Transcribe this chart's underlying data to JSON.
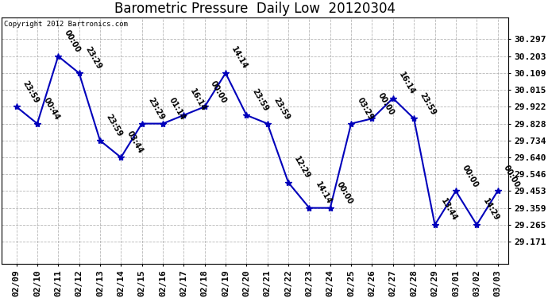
{
  "title": "Barometric Pressure  Daily Low  20120304",
  "copyright": "Copyright 2012 Bartronics.com",
  "x_labels": [
    "02/09",
    "02/10",
    "02/11",
    "02/12",
    "02/13",
    "02/14",
    "02/15",
    "02/16",
    "02/17",
    "02/18",
    "02/19",
    "02/20",
    "02/21",
    "02/22",
    "02/23",
    "02/24",
    "02/25",
    "02/26",
    "02/27",
    "02/28",
    "02/29",
    "03/01",
    "03/02",
    "03/03"
  ],
  "y_values": [
    29.922,
    29.828,
    30.203,
    30.109,
    29.734,
    29.64,
    29.828,
    29.828,
    29.875,
    29.922,
    30.109,
    29.875,
    29.828,
    29.5,
    29.359,
    29.359,
    29.828,
    29.856,
    29.969,
    29.856,
    29.265,
    29.453,
    29.265,
    29.453
  ],
  "point_labels": [
    "23:59",
    "00:44",
    "00:00",
    "23:29",
    "23:59",
    "03:44",
    "23:29",
    "01:14",
    "16:14",
    "00:00",
    "14:14",
    "23:59",
    "23:59",
    "12:29",
    "14:14",
    "00:00",
    "03:29",
    "00:00",
    "16:14",
    "23:59",
    "13:44",
    "00:00",
    "14:29",
    "00:00"
  ],
  "line_color": "#0000bb",
  "marker_color": "#0000bb",
  "bg_color": "#ffffff",
  "grid_color": "#999999",
  "yticks": [
    29.171,
    29.265,
    29.359,
    29.453,
    29.546,
    29.64,
    29.734,
    29.828,
    29.922,
    30.015,
    30.109,
    30.203,
    30.297
  ],
  "ylim": [
    29.05,
    30.42
  ],
  "xlim": [
    -0.7,
    23.5
  ],
  "title_fontsize": 12,
  "tick_fontsize": 8,
  "annotation_fontsize": 7
}
